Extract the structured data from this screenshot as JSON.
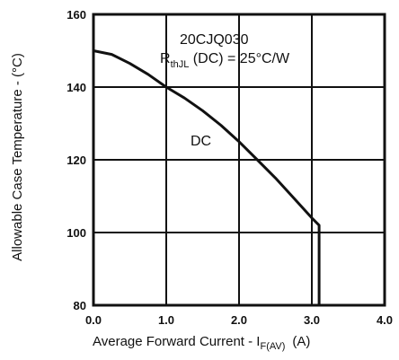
{
  "chart_data": {
    "type": "line",
    "title": "",
    "xlabel": "Average Forward Current - I",
    "xlabel_sub": "F(AV)",
    "xlabel_unit": "(A)",
    "ylabel": "Allowable Case Temperature - (°C)",
    "xlim": [
      0,
      4
    ],
    "ylim": [
      80,
      160
    ],
    "x_ticks": [
      "0.0",
      "1.0",
      "2.0",
      "3.0",
      "4.0"
    ],
    "y_ticks": [
      "80",
      "100",
      "120",
      "140",
      "160"
    ],
    "grid": true,
    "colors": {
      "line": "#111111",
      "grid": "#111111"
    },
    "annotations": {
      "part_number": "20CJQ030",
      "rth_prefix": "R",
      "rth_sub": "thJL",
      "rth_suffix": " (DC) = 25°C/W",
      "curve_label": "DC"
    },
    "series": [
      {
        "name": "DC",
        "x": [
          0.0,
          0.25,
          0.5,
          0.75,
          1.0,
          1.25,
          1.5,
          1.75,
          2.0,
          2.25,
          2.5,
          2.75,
          3.0,
          3.1,
          3.1
        ],
        "y": [
          150,
          149,
          146.5,
          143.5,
          140,
          137,
          133.5,
          129.5,
          125,
          120,
          115,
          109.5,
          104,
          102,
          80
        ]
      }
    ]
  }
}
